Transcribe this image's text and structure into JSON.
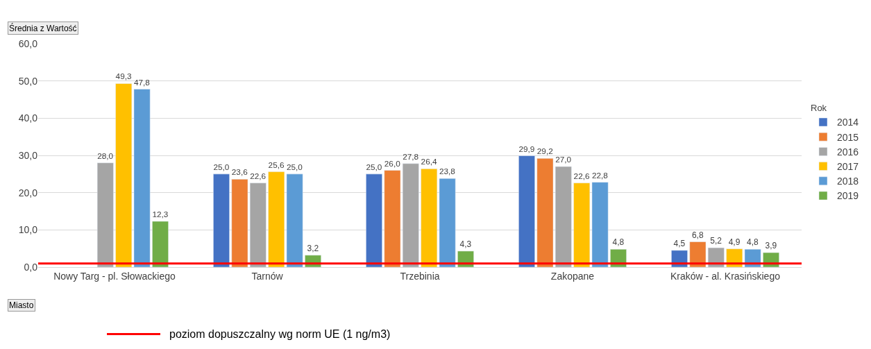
{
  "chart_data": {
    "type": "bar",
    "categories": [
      "Nowy Targ - pl. Słowackiego",
      "Tarnów",
      "Trzebinia",
      "Zakopane",
      "Kraków - al. Krasińskiego"
    ],
    "series": [
      {
        "name": "2014",
        "color": "#4472c4",
        "values": [
          null,
          25.0,
          25.0,
          29.9,
          4.5
        ],
        "value_labels": [
          null,
          "25,0",
          "25,0",
          "29,9",
          "4,5"
        ]
      },
      {
        "name": "2015",
        "color": "#ed7d31",
        "values": [
          null,
          23.6,
          26.0,
          29.2,
          6.8
        ],
        "value_labels": [
          null,
          "23,6",
          "26,0",
          "29,2",
          "6,8"
        ]
      },
      {
        "name": "2016",
        "color": "#a5a5a5",
        "values": [
          28.0,
          22.6,
          27.8,
          27.0,
          5.2
        ],
        "value_labels": [
          "28,0",
          "22,6",
          "27,8",
          "27,0",
          "5,2"
        ]
      },
      {
        "name": "2017",
        "color": "#ffc000",
        "values": [
          49.3,
          25.6,
          26.4,
          22.6,
          4.9
        ],
        "value_labels": [
          "49,3",
          "25,6",
          "26,4",
          "22,6",
          "4,9"
        ]
      },
      {
        "name": "2018",
        "color": "#5b9bd5",
        "values": [
          47.8,
          25.0,
          23.8,
          22.8,
          4.8
        ],
        "value_labels": [
          "47,8",
          "25,0",
          "23,8",
          "22,8",
          "4,8"
        ]
      },
      {
        "name": "2019",
        "color": "#70ad47",
        "values": [
          12.3,
          3.2,
          4.3,
          4.8,
          3.9
        ],
        "value_labels": [
          "12,3",
          "3,2",
          "4,3",
          "4,8",
          "3,9"
        ]
      }
    ],
    "ylim": [
      0,
      60
    ],
    "yticks": [
      {
        "value": 0,
        "label": "0,0"
      },
      {
        "value": 10,
        "label": "10,0"
      },
      {
        "value": 20,
        "label": "20,0"
      },
      {
        "value": 30,
        "label": "30,0"
      },
      {
        "value": 40,
        "label": "40,0"
      },
      {
        "value": 50,
        "label": "50,0"
      },
      {
        "value": 60,
        "label": "60,0"
      }
    ],
    "grid": "y",
    "legend": "right",
    "legend_title": "Rok",
    "ref_lines": [
      {
        "axis": "y",
        "value": 1,
        "label": "poziom dopuszczalny wg norm UE (1 ng/m3)",
        "color": "#ff0000",
        "line_style": "solid"
      }
    ],
    "annotations": [
      "Średnia z Wartość",
      "Miasto"
    ]
  }
}
